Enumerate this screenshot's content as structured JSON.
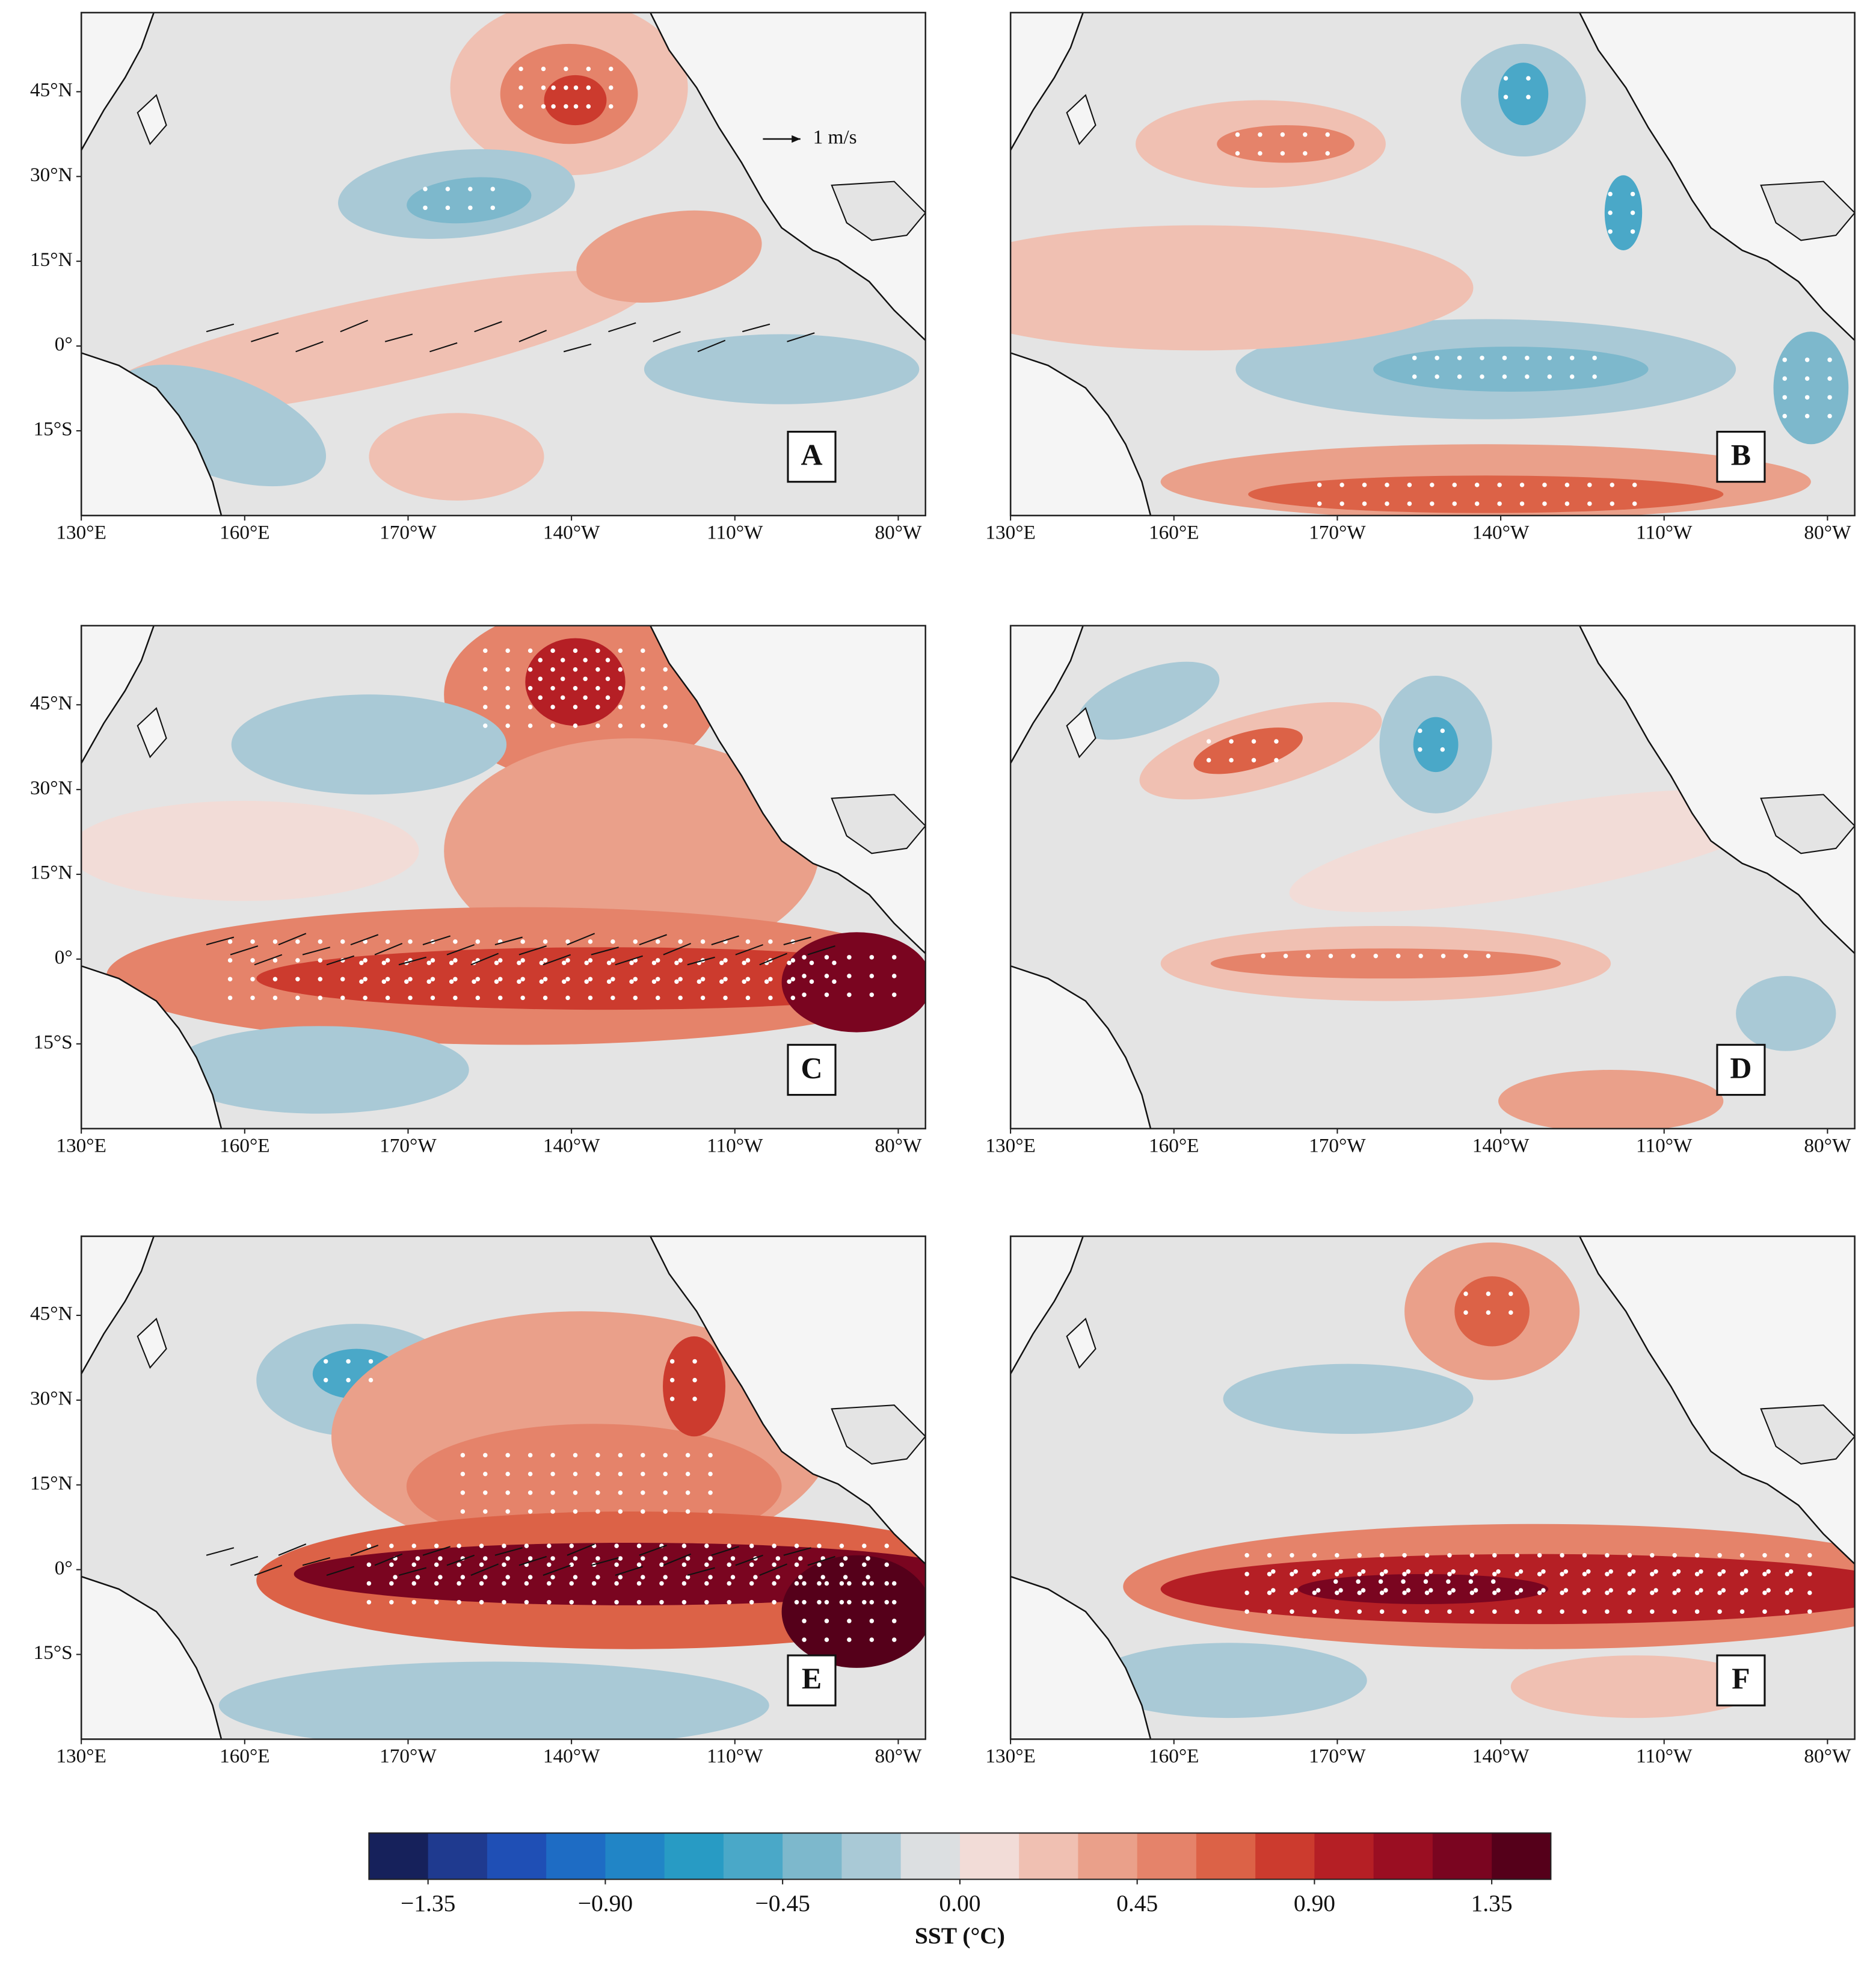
{
  "panels": [
    {
      "label": "A"
    },
    {
      "label": "B"
    },
    {
      "label": "C"
    },
    {
      "label": "D"
    },
    {
      "label": "E"
    },
    {
      "label": "F"
    }
  ],
  "lonlim": [
    130,
    285
  ],
  "latlim": [
    -30,
    59
  ],
  "lon_ticks": [
    {
      "value": 130,
      "label": "130°E"
    },
    {
      "value": 160,
      "label": "160°E"
    },
    {
      "value": 190,
      "label": "170°W"
    },
    {
      "value": 220,
      "label": "140°W"
    },
    {
      "value": 250,
      "label": "110°W"
    },
    {
      "value": 280,
      "label": "80°W"
    }
  ],
  "lat_ticks": [
    {
      "value": 45,
      "label": "45°N"
    },
    {
      "value": 30,
      "label": "30°N"
    },
    {
      "value": 15,
      "label": "15°N"
    },
    {
      "value": 0,
      "label": "0°"
    },
    {
      "value": -15,
      "label": "15°S"
    }
  ],
  "wind_scale_label": "1 m/s",
  "colorbar": {
    "title": "SST (°C)",
    "lim": [
      -1.5,
      1.5
    ],
    "ticks": [
      {
        "value": -1.35,
        "label": "−1.35"
      },
      {
        "value": -0.9,
        "label": "−0.90"
      },
      {
        "value": -0.45,
        "label": "−0.45"
      },
      {
        "value": 0,
        "label": "0.00"
      },
      0.45,
      {
        "value": 0.9,
        "label": "0.90"
      },
      1.35
    ],
    "colors": [
      "#16215b",
      "#1f3a8f",
      "#1f4fb5",
      "#1e6cc4",
      "#2185c6",
      "#289bc4",
      "#4aa8c8",
      "#7db8cc",
      "#a9c9d6",
      "#dcdfe1",
      "#f2dcd7",
      "#f0c0b2",
      "#eaa08a",
      "#e5836a",
      "#dc6247",
      "#cc3b2e",
      "#b51f25",
      "#9a0e22",
      "#7a0520",
      "#55001a"
    ]
  }
}
